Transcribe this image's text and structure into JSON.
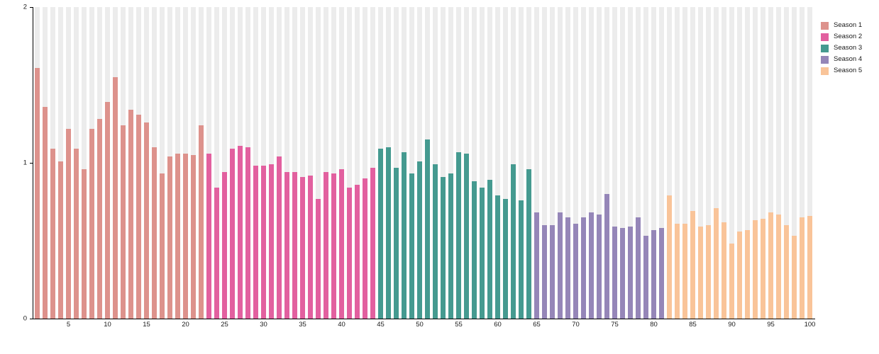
{
  "chart_data": {
    "type": "bar",
    "title": "",
    "xlabel": "",
    "ylabel": "",
    "ylim": [
      0,
      2
    ],
    "yticks": [
      0,
      1,
      2
    ],
    "xticks": [
      5,
      10,
      15,
      20,
      25,
      30,
      35,
      40,
      45,
      50,
      55,
      60,
      65,
      70,
      75,
      80,
      85,
      90,
      95,
      100
    ],
    "x_range": [
      1,
      100
    ],
    "grid": false,
    "legend_position": "top-right",
    "background_track_color": "#ececec",
    "series": [
      {
        "name": "Season 1",
        "color": "#dd928c",
        "values": [
          1.61,
          1.36,
          1.09,
          1.01,
          1.22,
          1.09,
          0.96,
          1.22,
          1.28,
          1.39,
          1.55,
          1.24,
          1.34,
          1.31,
          1.26,
          1.1,
          0.93,
          1.04,
          1.06,
          1.06,
          1.05,
          1.24
        ]
      },
      {
        "name": "Season 2",
        "color": "#e2609f",
        "values": [
          1.06,
          0.84,
          0.94,
          1.09,
          1.11,
          1.1,
          0.98,
          0.98,
          0.99,
          1.04,
          0.94,
          0.94,
          0.91,
          0.92,
          0.77,
          0.94,
          0.93,
          0.96,
          0.84,
          0.86,
          0.9,
          0.97
        ]
      },
      {
        "name": "Season 3",
        "color": "#459a90",
        "values": [
          1.09,
          1.1,
          0.97,
          1.07,
          0.93,
          1.01,
          1.15,
          0.99,
          0.91,
          0.93,
          1.07,
          1.06,
          0.88,
          0.84,
          0.89,
          0.79,
          0.77,
          0.99,
          0.76,
          0.96
        ]
      },
      {
        "name": "Season 4",
        "color": "#9586b8",
        "values": [
          0.68,
          0.6,
          0.6,
          0.68,
          0.65,
          0.61,
          0.65,
          0.68,
          0.67,
          0.8,
          0.59,
          0.58,
          0.59,
          0.65,
          0.53,
          0.57,
          0.58
        ]
      },
      {
        "name": "Season 5",
        "color": "#f9c499",
        "values": [
          0.79,
          0.61,
          0.61,
          0.69,
          0.59,
          0.6,
          0.71,
          0.62,
          0.48,
          0.56,
          0.57,
          0.63,
          0.64,
          0.68,
          0.67,
          0.6,
          0.53,
          0.65,
          0.66
        ]
      }
    ]
  },
  "legend": {
    "items": [
      {
        "label": "Season 1",
        "color": "#dd928c"
      },
      {
        "label": "Season 2",
        "color": "#e2609f"
      },
      {
        "label": "Season 3",
        "color": "#459a90"
      },
      {
        "label": "Season 4",
        "color": "#9586b8"
      },
      {
        "label": "Season 5",
        "color": "#f9c499"
      }
    ]
  }
}
